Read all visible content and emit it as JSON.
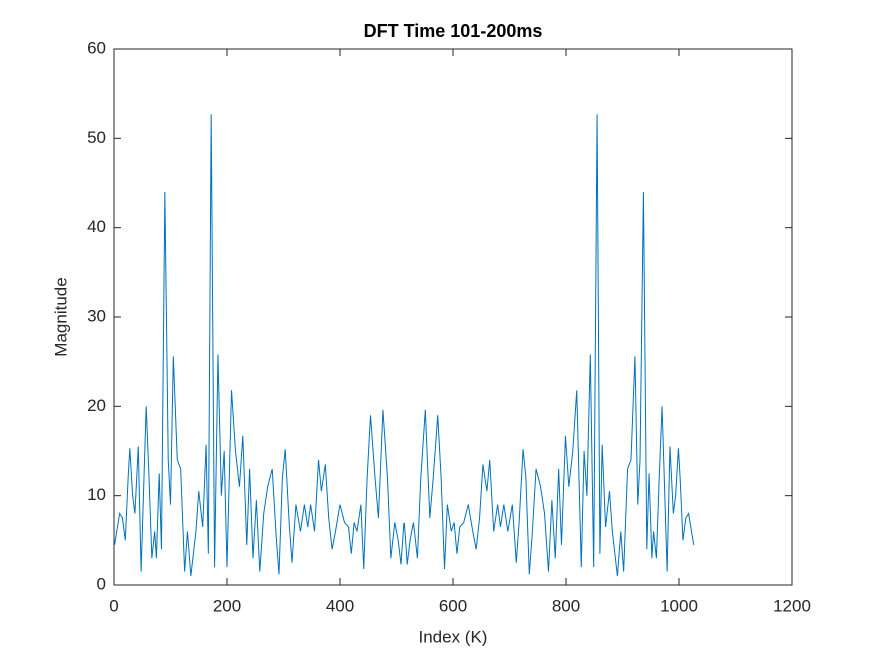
{
  "chart_data": {
    "type": "line",
    "title": "DFT Time 101-200ms",
    "xlabel": "Index (K)",
    "ylabel": "Magnitude",
    "xlim": [
      0,
      1200
    ],
    "xticks": [
      0,
      200,
      400,
      600,
      800,
      1000,
      1200
    ],
    "ylim": [
      0,
      60
    ],
    "yticks": [
      0,
      10,
      20,
      30,
      40,
      50,
      60
    ],
    "grid": false,
    "series": [
      {
        "color": "#0072bd",
        "x": [
          1,
          10,
          15,
          20,
          25,
          28,
          33,
          37,
          43,
          48,
          55,
          57,
          62,
          67,
          72,
          75,
          80,
          84,
          90,
          96,
          100,
          105,
          112,
          118,
          125,
          130,
          136,
          145,
          150,
          157,
          163,
          167,
          172,
          178,
          184,
          190,
          195,
          200,
          208,
          215,
          222,
          228,
          235,
          240,
          246,
          252,
          258,
          265,
          272,
          280,
          287,
          292,
          298,
          303,
          310,
          315,
          322,
          330,
          337,
          343,
          348,
          355,
          362,
          367,
          374,
          380,
          386,
          392,
          400,
          408,
          415,
          420,
          425,
          430,
          437,
          442,
          448,
          454,
          462,
          468,
          476,
          484,
          490,
          497,
          503,
          508,
          513,
          514,
          519,
          524,
          530,
          537,
          543,
          551,
          559,
          565,
          573,
          579,
          585,
          590,
          597,
          602,
          607,
          612,
          619,
          627,
          635,
          641,
          647,
          653,
          660,
          665,
          672,
          679,
          684,
          690,
          697,
          705,
          712,
          717,
          724,
          729,
          735,
          740,
          747,
          755,
          762,
          769,
          775,
          781,
          787,
          792,
          799,
          805,
          812,
          819,
          827,
          832,
          837,
          843,
          849,
          855,
          860,
          864,
          870,
          877,
          882,
          891,
          897,
          902,
          909,
          915,
          922,
          927,
          931,
          937,
          943,
          947,
          952,
          955,
          960,
          965,
          970,
          972,
          979,
          984,
          990,
          994,
          999,
          1002,
          1007,
          1012,
          1017,
          1026
        ],
        "values": [
          4.5,
          8,
          7.5,
          5,
          12,
          15.3,
          10,
          8,
          15.5,
          1.5,
          16,
          20,
          12,
          3,
          6,
          3,
          12.5,
          4,
          44,
          14,
          9,
          25.6,
          14,
          13,
          1.5,
          6,
          1,
          6,
          10.5,
          6.5,
          15.7,
          3.5,
          52.7,
          2,
          25.8,
          10,
          15,
          2,
          21.8,
          15,
          11,
          16.7,
          4.5,
          13,
          3,
          9.5,
          1.5,
          8,
          11,
          13,
          5.5,
          1.2,
          12,
          15.2,
          7,
          2.5,
          9,
          6,
          9,
          6.5,
          9,
          6,
          14,
          10.5,
          13.5,
          7.5,
          4,
          6,
          9,
          7,
          6.5,
          3.5,
          7,
          6,
          9,
          1.8,
          12,
          19,
          12,
          7.5,
          19.6,
          12,
          3,
          7,
          5,
          2.3,
          6.9,
          6.9,
          2.3,
          5,
          7,
          3,
          12,
          19.6,
          7.5,
          12,
          19,
          12,
          1.8,
          9,
          6,
          7,
          3.5,
          6.5,
          7,
          9,
          6,
          4,
          7.5,
          13.5,
          10.5,
          14,
          6,
          9,
          6.5,
          9,
          6,
          9,
          2.5,
          7,
          15.2,
          12,
          1.2,
          5.5,
          13,
          11,
          8,
          1.5,
          9.5,
          3,
          13,
          4.5,
          16.7,
          11,
          15,
          21.8,
          2,
          15,
          10,
          25.8,
          2,
          52.7,
          3.5,
          15.7,
          6.5,
          10.5,
          6,
          1,
          6,
          1.5,
          13,
          14,
          25.6,
          9,
          14,
          44,
          4,
          12.5,
          3,
          6,
          3,
          12,
          20,
          16,
          1.5,
          15.5,
          8,
          10,
          15.3,
          12,
          5,
          7.5,
          8,
          4.5
        ]
      }
    ]
  }
}
